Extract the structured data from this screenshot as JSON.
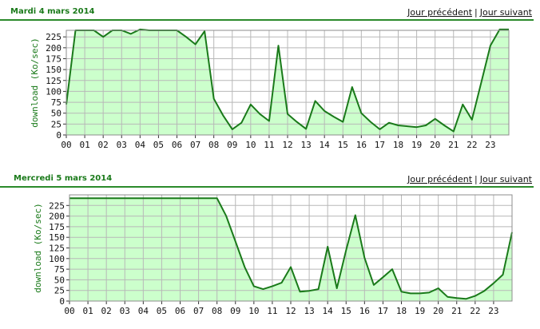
{
  "nav": {
    "prev_label": "Jour précédent",
    "separator": "|",
    "next_label": "Jour suivant"
  },
  "colors": {
    "line": "#1a7a1a",
    "fill": "#ccffcc",
    "grid": "#b8b8b8",
    "title": "#1a7a1a"
  },
  "charts": [
    {
      "title": "Mardi 4 mars 2014",
      "ylabel": "download (Ko/sec)",
      "yticks": [
        "0",
        "25",
        "50",
        "75",
        "100",
        "125",
        "150",
        "175",
        "200",
        "225"
      ],
      "xticks": [
        "00",
        "01",
        "02",
        "03",
        "04",
        "05",
        "06",
        "07",
        "08",
        "09",
        "10",
        "11",
        "12",
        "13",
        "14",
        "15",
        "16",
        "17",
        "18",
        "19",
        "20",
        "21",
        "22",
        "23"
      ]
    },
    {
      "title": "Mercredi 5 mars 2014",
      "ylabel": "download (Ko/sec)",
      "yticks": [
        "0",
        "25",
        "50",
        "75",
        "100",
        "125",
        "150",
        "175",
        "200",
        "225"
      ],
      "xticks": [
        "00",
        "01",
        "02",
        "03",
        "04",
        "05",
        "06",
        "07",
        "08",
        "09",
        "10",
        "11",
        "12",
        "13",
        "14",
        "15",
        "16",
        "17",
        "18",
        "19",
        "20",
        "21",
        "22",
        "23"
      ]
    }
  ],
  "chart_data": [
    {
      "type": "area",
      "title": "Mardi 4 mars 2014",
      "ylabel": "download (Ko/sec)",
      "ylim": [
        0,
        240
      ],
      "xlim": [
        0,
        24
      ],
      "grid": true,
      "x": [
        0,
        0.5,
        1,
        1.5,
        2,
        2.5,
        3,
        3.5,
        4,
        4.5,
        5,
        5.5,
        6,
        6.5,
        7,
        7.5,
        8,
        8.5,
        9,
        9.5,
        10,
        10.5,
        11,
        11.5,
        12,
        12.5,
        13,
        13.5,
        14,
        14.5,
        15,
        15.5,
        16,
        16.5,
        17,
        17.5,
        18,
        18.5,
        19,
        19.5,
        20,
        20.5,
        21,
        21.5,
        22,
        22.5,
        23,
        23.5,
        24
      ],
      "values": [
        70,
        240,
        240,
        240,
        225,
        240,
        240,
        232,
        242,
        240,
        240,
        240,
        240,
        225,
        208,
        238,
        83,
        45,
        13,
        28,
        70,
        48,
        32,
        205,
        48,
        30,
        14,
        78,
        55,
        42,
        30,
        110,
        50,
        30,
        13,
        28,
        22,
        20,
        18,
        22,
        37,
        22,
        8,
        70,
        35,
        120,
        205,
        242,
        242
      ]
    },
    {
      "type": "area",
      "title": "Mercredi 5 mars 2014",
      "ylabel": "download (Ko/sec)",
      "ylim": [
        0,
        250
      ],
      "xlim": [
        0,
        24
      ],
      "grid": true,
      "x": [
        0,
        0.5,
        1,
        1.5,
        2,
        2.5,
        3,
        3.5,
        4,
        4.5,
        5,
        5.5,
        6,
        6.5,
        7,
        7.5,
        8,
        8.5,
        9,
        9.5,
        10,
        10.5,
        11,
        11.5,
        12,
        12.5,
        13,
        13.5,
        14,
        14.5,
        15,
        15.5,
        16,
        16.5,
        17,
        17.5,
        18,
        18.5,
        19,
        19.5,
        20,
        20.5,
        21,
        21.5,
        22,
        22.5,
        23,
        23.5,
        24
      ],
      "values": [
        242,
        242,
        242,
        242,
        242,
        242,
        242,
        242,
        242,
        242,
        242,
        242,
        242,
        242,
        242,
        242,
        242,
        200,
        140,
        80,
        35,
        28,
        35,
        43,
        80,
        22,
        24,
        28,
        128,
        30,
        120,
        202,
        102,
        38,
        56,
        75,
        22,
        18,
        18,
        20,
        30,
        10,
        7,
        5,
        12,
        24,
        42,
        62,
        162
      ]
    }
  ]
}
